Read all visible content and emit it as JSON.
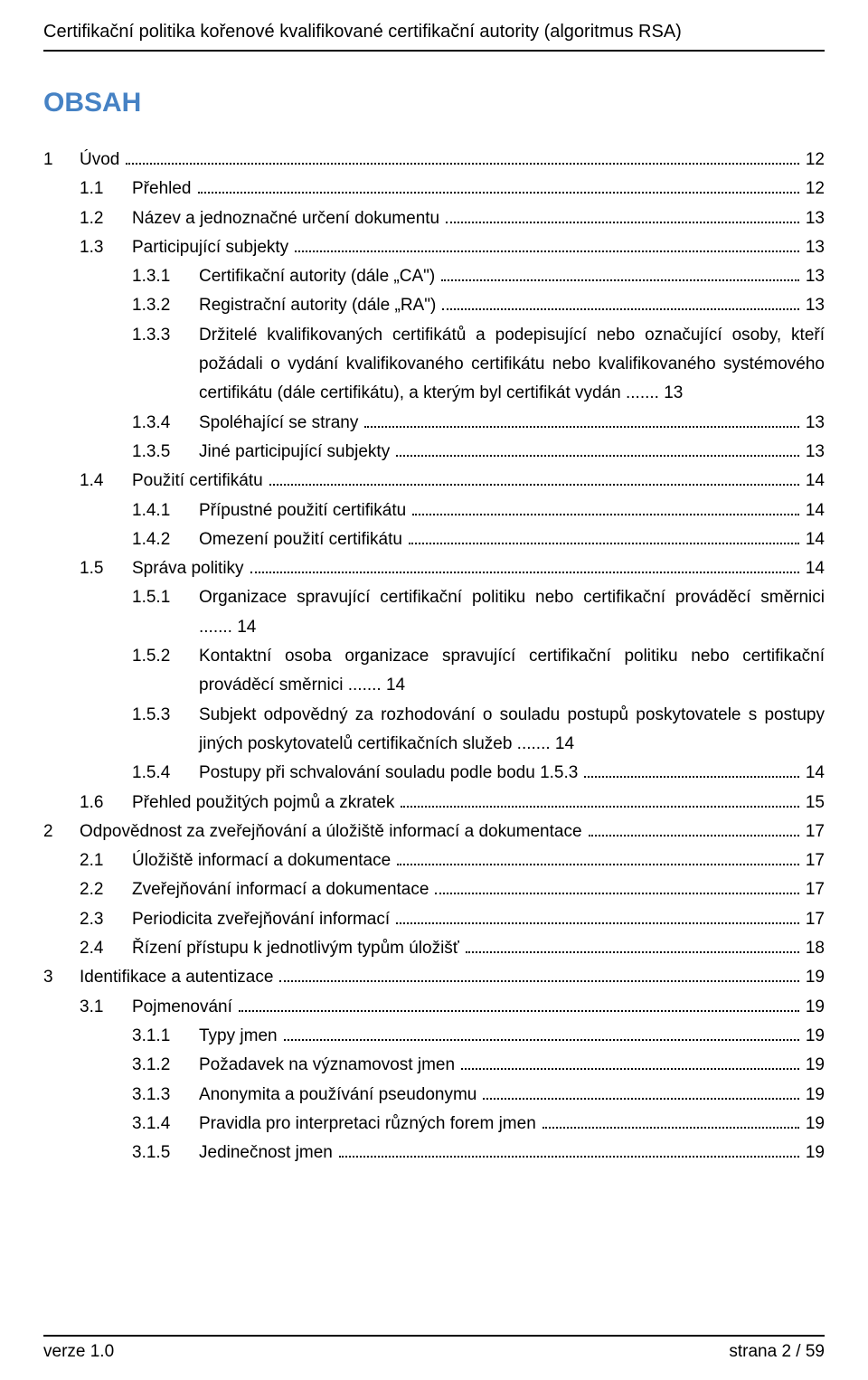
{
  "header": {
    "title": "Certifikační politika kořenové kvalifikované certifikační autority (algoritmus RSA)"
  },
  "toc": {
    "heading": "OBSAH",
    "entries": [
      {
        "level": 1,
        "num": "1",
        "text": "Úvod",
        "page": "12"
      },
      {
        "level": 2,
        "num": "1.1",
        "text": "Přehled",
        "page": "12"
      },
      {
        "level": 2,
        "num": "1.2",
        "text": "Název a jednoznačné určení dokumentu",
        "page": "13"
      },
      {
        "level": 2,
        "num": "1.3",
        "text": "Participující subjekty",
        "page": "13"
      },
      {
        "level": 3,
        "num": "1.3.1",
        "text": "Certifikační autority (dále „CA\")",
        "page": "13"
      },
      {
        "level": 3,
        "num": "1.3.2",
        "text": "Registrační autority (dále „RA\")",
        "page": "13"
      },
      {
        "level": 3,
        "num": "1.3.3",
        "text": "Držitelé kvalifikovaných certifikátů a podepisující nebo označující osoby, kteří požádali o vydání kvalifikovaného certifikátu nebo kvalifikovaného systémového certifikátu (dále certifikátu), a kterým byl certifikát vydán",
        "page": "13",
        "wrap": true
      },
      {
        "level": 3,
        "num": "1.3.4",
        "text": "Spoléhající se strany",
        "page": "13"
      },
      {
        "level": 3,
        "num": "1.3.5",
        "text": "Jiné participující subjekty",
        "page": "13"
      },
      {
        "level": 2,
        "num": "1.4",
        "text": "Použití certifikátu",
        "page": "14"
      },
      {
        "level": 3,
        "num": "1.4.1",
        "text": "Přípustné použití certifikátu",
        "page": "14"
      },
      {
        "level": 3,
        "num": "1.4.2",
        "text": "Omezení použití certifikátu",
        "page": "14"
      },
      {
        "level": 2,
        "num": "1.5",
        "text": "Správa politiky",
        "page": "14"
      },
      {
        "level": 3,
        "num": "1.5.1",
        "text": "Organizace spravující certifikační politiku nebo certifikační prováděcí směrnici",
        "page": "14",
        "wrap": true
      },
      {
        "level": 3,
        "num": "1.5.2",
        "text": "Kontaktní osoba organizace spravující certifikační politiku nebo certifikační prováděcí směrnici",
        "page": "14",
        "wrap": true
      },
      {
        "level": 3,
        "num": "1.5.3",
        "text": "Subjekt odpovědný za rozhodování o souladu postupů poskytovatele s postupy jiných poskytovatelů certifikačních služeb",
        "page": "14",
        "wrap": true
      },
      {
        "level": 3,
        "num": "1.5.4",
        "text": "Postupy při schvalování souladu podle bodu 1.5.3",
        "page": "14"
      },
      {
        "level": 2,
        "num": "1.6",
        "text": "Přehled použitých pojmů a zkratek",
        "page": "15"
      },
      {
        "level": 1,
        "num": "2",
        "text": "Odpovědnost za zveřejňování a úložiště informací a dokumentace",
        "page": "17"
      },
      {
        "level": 2,
        "num": "2.1",
        "text": "Úložiště informací a dokumentace",
        "page": "17"
      },
      {
        "level": 2,
        "num": "2.2",
        "text": "Zveřejňování informací a dokumentace",
        "page": "17"
      },
      {
        "level": 2,
        "num": "2.3",
        "text": "Periodicita zveřejňování informací",
        "page": "17"
      },
      {
        "level": 2,
        "num": "2.4",
        "text": "Řízení přístupu k jednotlivým typům úložišť",
        "page": "18"
      },
      {
        "level": 1,
        "num": "3",
        "text": "Identifikace a autentizace",
        "page": "19"
      },
      {
        "level": 2,
        "num": "3.1",
        "text": "Pojmenování",
        "page": "19"
      },
      {
        "level": 3,
        "num": "3.1.1",
        "text": "Typy jmen",
        "page": "19"
      },
      {
        "level": 3,
        "num": "3.1.2",
        "text": "Požadavek na významovost jmen",
        "page": "19"
      },
      {
        "level": 3,
        "num": "3.1.3",
        "text": "Anonymita a používání pseudonymu",
        "page": "19"
      },
      {
        "level": 3,
        "num": "3.1.4",
        "text": "Pravidla pro interpretaci různých forem jmen",
        "page": "19"
      },
      {
        "level": 3,
        "num": "3.1.5",
        "text": "Jedinečnost jmen",
        "page": "19"
      }
    ]
  },
  "footer": {
    "version": "verze 1.0",
    "page": "strana 2 / 59"
  },
  "colors": {
    "heading_color": "#4682c4",
    "text_color": "#000000",
    "background": "#ffffff",
    "rule_color": "#000000"
  },
  "typography": {
    "body_font_family": "Arial, Helvetica, sans-serif",
    "header_fontsize_pt": 15,
    "obsah_fontsize_pt": 22,
    "toc_fontsize_pt": 14,
    "footer_fontsize_pt": 14
  }
}
